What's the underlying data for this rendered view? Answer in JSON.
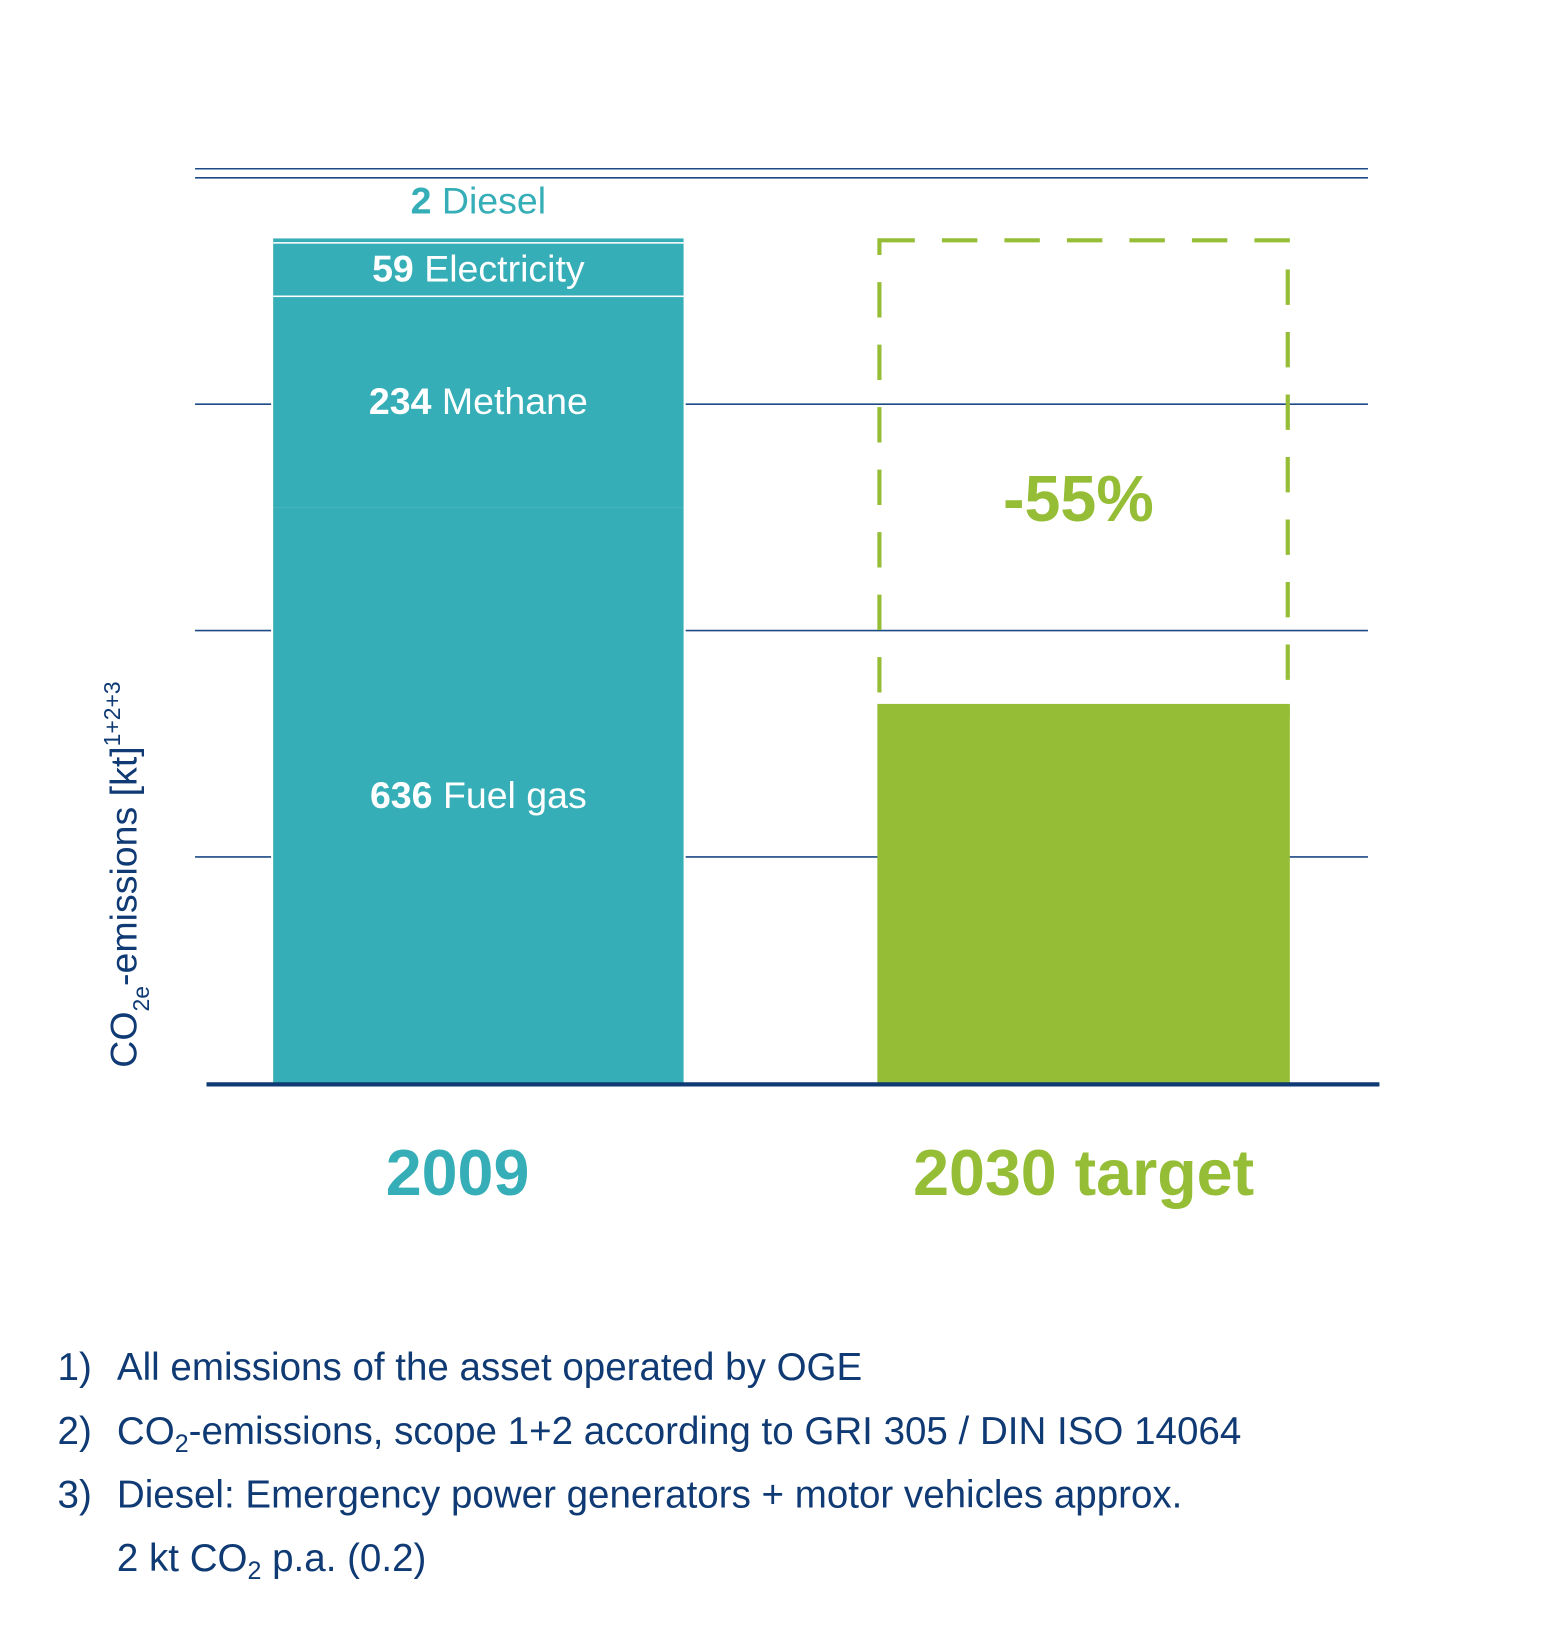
{
  "colors": {
    "teal": "#36aeb7",
    "green": "#95bd35",
    "navy": "#0f3a74",
    "grid": "#1d4a86"
  },
  "chart_data": {
    "type": "bar",
    "stacked": true,
    "ylabel": {
      "main": "CO",
      "sub": "2e",
      "rest": "-emissions [kt]",
      "sup": "1+2+3"
    },
    "ylim": [
      0,
      1010
    ],
    "gridlines": [
      250,
      500,
      750,
      1000
    ],
    "grid": true,
    "categories": [
      "2009",
      "2030 target"
    ],
    "bars": [
      {
        "category": "2009",
        "segments": [
          {
            "name": "Fuel gas",
            "value": 636,
            "value_label": "636"
          },
          {
            "name": "Methane",
            "value": 234,
            "value_label": "234"
          },
          {
            "name": "Electricity",
            "value": 59,
            "value_label": "59"
          },
          {
            "name": "Diesel",
            "value": 2,
            "value_label": "2"
          }
        ]
      },
      {
        "category": "2030 target",
        "value": 419,
        "reference_outline_value": 931,
        "annotation": "-55%"
      }
    ]
  },
  "footnotes": [
    {
      "num": "1)",
      "parts": [
        [
          "All emissions of the asset operated by OGE",
          ""
        ]
      ]
    },
    {
      "num": "2)",
      "parts": [
        [
          "CO",
          ""
        ],
        [
          "2",
          "sub"
        ],
        [
          "-emissions, scope 1+2 according to GRI 305 / DIN ISO 14064",
          ""
        ]
      ]
    },
    {
      "num": "3)",
      "parts": [
        [
          "Diesel: Emergency power generators + motor vehicles approx.",
          ""
        ]
      ]
    },
    {
      "num": "",
      "parts": [
        [
          "2 kt CO",
          ""
        ],
        [
          "2",
          "sub"
        ],
        [
          " p.a. (0.2)",
          ""
        ]
      ]
    }
  ]
}
